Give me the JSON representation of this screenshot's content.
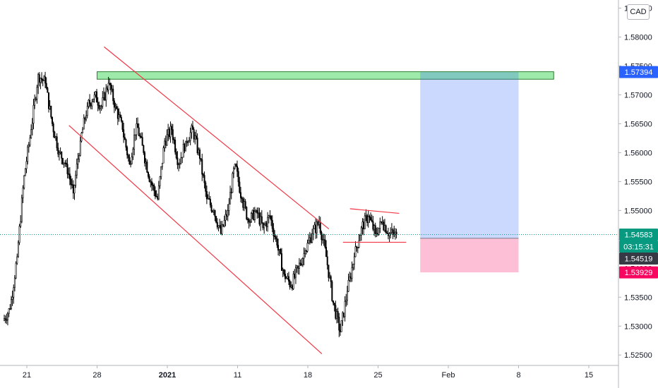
{
  "symbol": {
    "currency": "CAD"
  },
  "chart_data": {
    "type": "candlestick",
    "price_axis": {
      "min": 1.5232,
      "max": 1.5864,
      "ticks": [
        "1.52500",
        "1.53000",
        "1.53500",
        "1.54000",
        "1.54500",
        "1.55000",
        "1.55500",
        "1.56000",
        "1.56500",
        "1.57000",
        "1.57500",
        "1.58000",
        "1.58500"
      ]
    },
    "time_axis": {
      "ticks": [
        {
          "label": "21",
          "bar": 3,
          "bold": false
        },
        {
          "label": "28",
          "bar": 13,
          "bold": false
        },
        {
          "label": "2021",
          "bar": 23,
          "bold": true
        },
        {
          "label": "11",
          "bar": 33,
          "bold": false
        },
        {
          "label": "18",
          "bar": 43,
          "bold": false
        },
        {
          "label": "25",
          "bar": 53,
          "bold": false
        },
        {
          "label": "Feb",
          "bar": 63,
          "bold": false
        },
        {
          "label": "8",
          "bar": 73,
          "bold": false
        },
        {
          "label": "15",
          "bar": 83,
          "bold": false
        }
      ]
    },
    "bars_per_day": 6,
    "daily_closes": [
      1.533,
      1.542,
      1.556,
      1.564,
      1.5735,
      1.572,
      1.565,
      1.56,
      1.558,
      1.553,
      1.562,
      1.568,
      1.57,
      1.568,
      1.572,
      1.568,
      1.564,
      1.558,
      1.565,
      1.56,
      1.555,
      1.552,
      1.562,
      1.564,
      1.558,
      1.562,
      1.564,
      1.559,
      1.552,
      1.55,
      1.546,
      1.55,
      1.558,
      1.552,
      1.548,
      1.55,
      1.547,
      1.549,
      1.544,
      1.539,
      1.537,
      1.54,
      1.543,
      1.546,
      1.548,
      1.542,
      1.534,
      1.529,
      1.536,
      1.542,
      1.547,
      1.549,
      1.546,
      1.548,
      1.546,
      1.5458
    ],
    "last_price": 1.54583,
    "countdown": "03:15:31",
    "price_tags": [
      {
        "label": "1.57394",
        "price": 1.57394,
        "color": "#2962ff"
      },
      {
        "label": "1.54583",
        "price": 1.54583,
        "color": "#089981"
      },
      {
        "label": "03:15:31",
        "price": 1.54583,
        "color": "#089981",
        "offset": 1
      },
      {
        "label": "1.54519",
        "price": 1.54519,
        "color": "#363a45",
        "offset": 1
      },
      {
        "label": "1.53929",
        "price": 1.53929,
        "color": "#f7075f"
      }
    ],
    "resistance_zone": {
      "bar_from": 13,
      "bar_to": 78,
      "price_top": 1.574,
      "price_bottom": 1.5727
    },
    "position": {
      "bar_from": 59,
      "bar_to": 73,
      "entry": 1.54519,
      "target": 1.57394,
      "stop": 1.53929
    },
    "channel_lines": [
      {
        "from": {
          "bar": 14,
          "price": 1.5783
        },
        "to": {
          "bar": 46,
          "price": 1.5468
        }
      },
      {
        "from": {
          "bar": 9,
          "price": 1.5647
        },
        "to": {
          "bar": 45,
          "price": 1.5252
        }
      }
    ],
    "wedge_lines": [
      {
        "from": {
          "bar": 49,
          "price": 1.5503
        },
        "to": {
          "bar": 56,
          "price": 1.5495
        }
      },
      {
        "from": {
          "bar": 48,
          "price": 1.5445
        },
        "to": {
          "bar": 57,
          "price": 1.5445
        }
      }
    ]
  }
}
